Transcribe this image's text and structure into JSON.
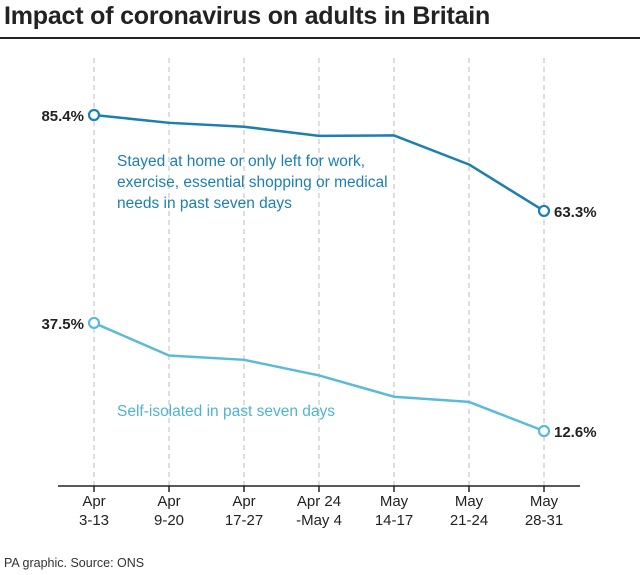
{
  "title": "Impact of coronavirus on adults in Britain",
  "source": "PA graphic. Source: ONS",
  "colors": {
    "series_dark": "#1b7fb0",
    "series_light": "#5bbad9",
    "grid": "#bdbdbd",
    "axis": "#222222"
  },
  "chart_data": {
    "type": "line",
    "title": "Impact of coronavirus on adults in Britain",
    "xlabel": "",
    "ylabel": "",
    "ylim": [
      0,
      100
    ],
    "grid": "vertical dashed",
    "categories": [
      [
        "Apr",
        "3-13"
      ],
      [
        "Apr",
        "9-20"
      ],
      [
        "Apr",
        "17-27"
      ],
      [
        "Apr 24",
        "-May 4"
      ],
      [
        "May",
        "14-17"
      ],
      [
        "May",
        "21-24"
      ],
      [
        "May",
        "28-31"
      ]
    ],
    "series": [
      {
        "name": "Stayed at home or only left for work, exercise, essential shopping or medical needs in past seven days",
        "label_lines": [
          "Stayed at home or only left for work,",
          "exercise, essential shopping or medical",
          "needs in past seven days"
        ],
        "color": "#1b7fb0",
        "values": [
          85.4,
          83.6,
          82.7,
          80.6,
          80.7,
          74.0,
          63.3
        ],
        "start_label": "85.4%",
        "end_label": "63.3%"
      },
      {
        "name": "Self-isolated in past seven days",
        "label_lines": [
          "Self-isolated in past seven days"
        ],
        "color": "#5bbad9",
        "values": [
          37.5,
          30.0,
          29.0,
          25.4,
          20.5,
          19.3,
          12.6
        ],
        "start_label": "37.5%",
        "end_label": "12.6%"
      }
    ]
  }
}
